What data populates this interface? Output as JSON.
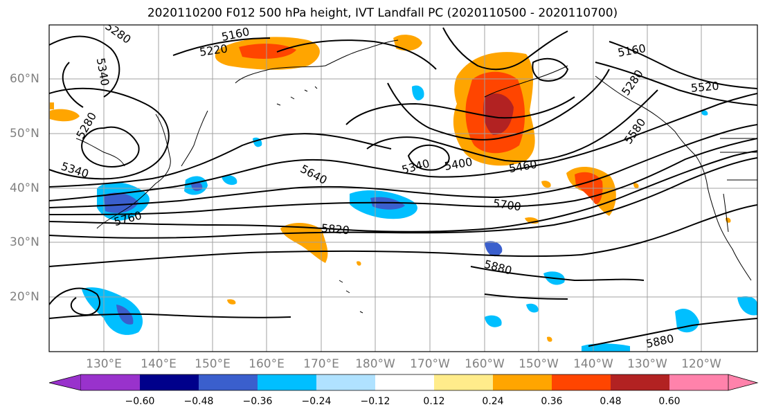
{
  "title": "2020110200 F012 500 hPa height, IVT Landfall PC (2020110500 - 2020110700)",
  "lat_labels": [
    "60°N",
    "50°N",
    "40°N",
    "30°N",
    "20°N"
  ],
  "lon_labels": [
    "130°E",
    "140°E",
    "150°E",
    "160°E",
    "170°E",
    "180°W",
    "170°W",
    "160°W",
    "150°W",
    "140°W",
    "130°W",
    "120°W"
  ],
  "contour_labels": [
    "5160",
    "5220",
    "5280",
    "5340",
    "5280",
    "5340",
    "5760",
    "5640",
    "5340",
    "5400",
    "5460",
    "5700",
    "5820",
    "5880",
    "5880",
    "5160",
    "5280",
    "5520",
    "5580"
  ],
  "colorbar": {
    "ticks": [
      "−0.60",
      "−0.48",
      "−0.36",
      "−0.24",
      "−0.12",
      "0.12",
      "0.24",
      "0.36",
      "0.48",
      "0.60"
    ],
    "colors": [
      "#9932cc",
      "#00008b",
      "#3a5fcd",
      "#00bfff",
      "#b0e2ff",
      "#ffffff",
      "#ffec8b",
      "#ffa500",
      "#ff4500",
      "#b22222",
      "#ff82ab"
    ]
  }
}
